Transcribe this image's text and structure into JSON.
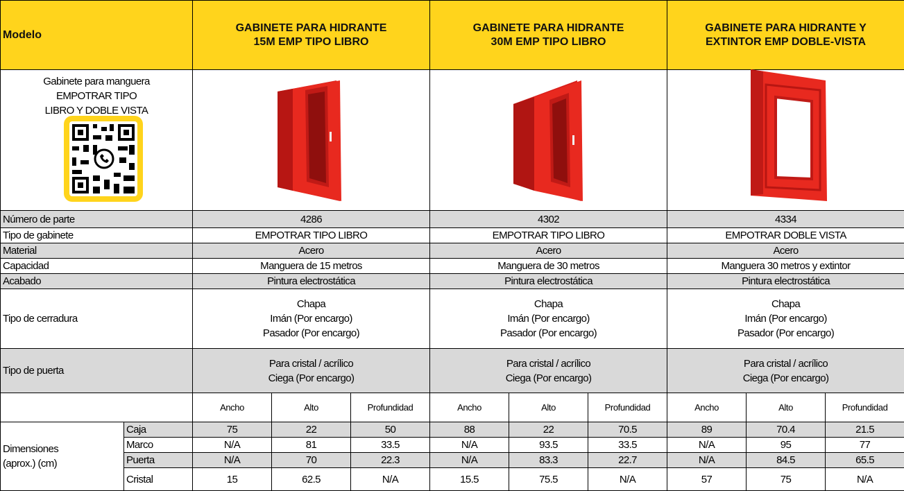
{
  "header": {
    "label": "Modelo",
    "products": [
      [
        "GABINETE PARA HIDRANTE",
        "15M EMP TIPO LIBRO"
      ],
      [
        "GABINETE PARA HIDRANTE",
        "30M EMP TIPO LIBRO"
      ],
      [
        "GABINETE PARA HIDRANTE Y",
        "EXTINTOR EMP DOBLE-VISTA"
      ]
    ]
  },
  "intro": [
    "Gabinete para manguera",
    "EMPOTRAR TIPO",
    "LIBRO Y DOBLE VISTA"
  ],
  "specs": [
    {
      "label": "Número de parte",
      "values": [
        [
          "4286"
        ],
        [
          "4302"
        ],
        [
          "4334"
        ]
      ]
    },
    {
      "label": "Tipo de gabinete",
      "values": [
        [
          "EMPOTRAR TIPO LIBRO"
        ],
        [
          "EMPOTRAR TIPO LIBRO"
        ],
        [
          "EMPOTRAR DOBLE VISTA"
        ]
      ]
    },
    {
      "label": "Material",
      "values": [
        [
          "Acero"
        ],
        [
          "Acero"
        ],
        [
          "Acero"
        ]
      ]
    },
    {
      "label": "Capacidad",
      "values": [
        [
          "Manguera  de 15 metros"
        ],
        [
          "Manguera de 30 metros"
        ],
        [
          "Manguera 30 metros y extintor"
        ]
      ]
    },
    {
      "label": "Acabado",
      "values": [
        [
          "Pintura electrostática"
        ],
        [
          "Pintura electrostática"
        ],
        [
          "Pintura electrostática"
        ]
      ]
    },
    {
      "label": "Tipo de cerradura",
      "values": [
        [
          "Chapa",
          "Imán (Por encargo)",
          "Pasador (Por encargo)"
        ],
        [
          "Chapa",
          "Imán (Por encargo)",
          "Pasador (Por encargo)"
        ],
        [
          "Chapa",
          "Imán (Por encargo)",
          "Pasador (Por encargo)"
        ]
      ]
    },
    {
      "label": "Tipo de puerta",
      "values": [
        [
          "Para cristal / acrílico",
          "Ciega (Por encargo)"
        ],
        [
          "Para cristal / acrílico",
          "Ciega (Por encargo)"
        ],
        [
          "Para cristal / acrílico",
          "Ciega (Por encargo)"
        ]
      ]
    }
  ],
  "dimensions": {
    "label": [
      "Dimensiones",
      "(aprox.) (cm)"
    ],
    "subheaders": [
      "Ancho",
      "Alto",
      "Profundidad",
      "Ancho",
      "Alto",
      "Profundidad",
      "Ancho",
      "Alto",
      "Profundidad"
    ],
    "rows": [
      {
        "label": "Caja",
        "values": [
          75,
          22,
          50,
          88,
          22,
          70.5,
          89,
          70.4,
          21.5
        ]
      },
      {
        "label": "Marco",
        "values": [
          "N/A",
          81,
          33.5,
          "N/A",
          93.5,
          33.5,
          "N/A",
          95,
          77
        ]
      },
      {
        "label": "Puerta",
        "values": [
          "N/A",
          70,
          22.3,
          "N/A",
          83.3,
          22.7,
          "N/A",
          84.5,
          65.5
        ]
      },
      {
        "label": "Cristal",
        "values": [
          15,
          62.5,
          "N/A",
          15.5,
          75.5,
          "N/A",
          57,
          75,
          "N/A"
        ]
      }
    ]
  }
}
